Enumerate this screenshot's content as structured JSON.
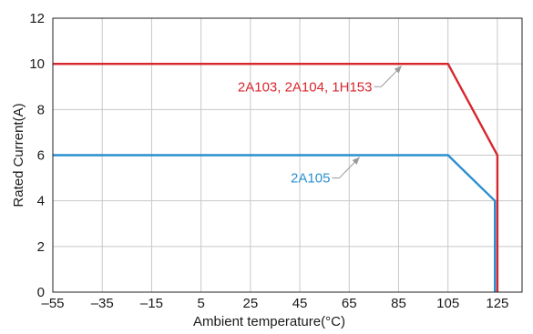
{
  "chart_data": {
    "type": "line",
    "title": "",
    "xlabel": "Ambient temperature(°C)",
    "ylabel": "Rated Current(A)",
    "xlim": [
      -55,
      135
    ],
    "ylim": [
      0,
      12
    ],
    "xticks": [
      -55,
      -35,
      -15,
      5,
      25,
      45,
      65,
      85,
      105,
      125
    ],
    "xtick_labels": [
      "–55",
      "–35",
      "–15",
      "5",
      "25",
      "45",
      "65",
      "85",
      "105",
      "125"
    ],
    "yticks": [
      0,
      2,
      4,
      6,
      8,
      10,
      12
    ],
    "ytick_labels": [
      "0",
      "2",
      "4",
      "6",
      "8",
      "10",
      "12"
    ],
    "grid": true,
    "series": [
      {
        "name": "2A103, 2A104, 1H153",
        "color": "#d7262e",
        "points": [
          [
            -55,
            10
          ],
          [
            105,
            10
          ],
          [
            125,
            6
          ],
          [
            125,
            0
          ]
        ]
      },
      {
        "name": "2A105",
        "color": "#2a8fcf",
        "points": [
          [
            -55,
            6
          ],
          [
            105,
            6
          ],
          [
            124,
            4
          ],
          [
            124,
            0
          ]
        ]
      }
    ],
    "annotations": [
      {
        "text": "2A103, 2A104, 1H153",
        "series": 0,
        "arrow_from": [
          78,
          9.0
        ],
        "arrow_to": [
          87,
          10
        ],
        "color": "#d7262e",
        "leader_color": "#9a9a9a"
      },
      {
        "text": "2A105",
        "series": 1,
        "arrow_from": [
          61,
          5.0
        ],
        "arrow_to": [
          70,
          6
        ],
        "color": "#2a8fcf",
        "leader_color": "#9a9a9a"
      }
    ]
  }
}
